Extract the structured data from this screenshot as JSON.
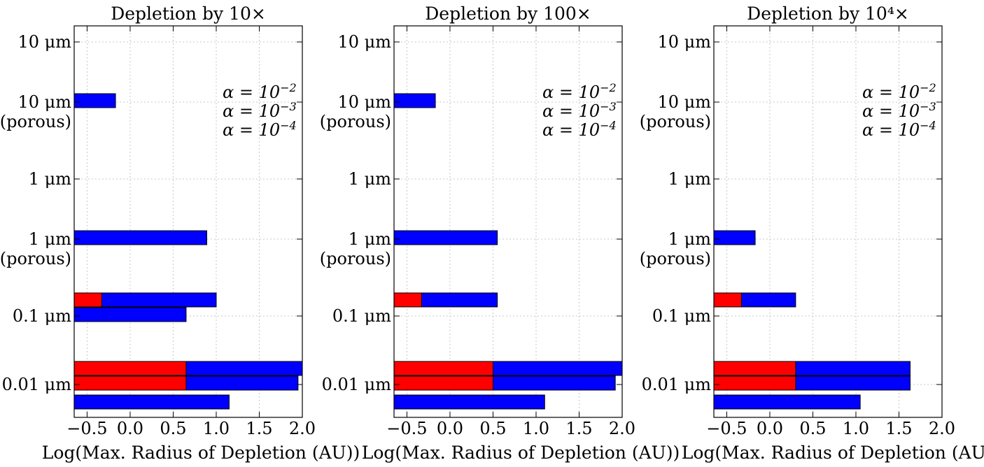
{
  "chart_data": [
    {
      "type": "bar",
      "orientation": "horizontal",
      "title": "Depletion by 10×",
      "xlabel": "Log(Max. Radius of Depletion (AU))",
      "xlim": [
        -0.65,
        2.0
      ],
      "xticks": [
        "−0.5",
        "0.0",
        "0.5",
        "1.0",
        "1.5",
        "2.0"
      ],
      "categories": [
        "10 μm",
        "10 μm (porous)",
        "1 μm",
        "1 μm (porous)",
        "0.1 μm",
        "0.01 μm"
      ],
      "grid": true,
      "legend_placement": "top-right",
      "legend": [
        "α = 10^−2",
        "α = 10^−3",
        "α = 10^−4"
      ],
      "series": [
        {
          "name": "α = 10^−2",
          "color": "#ff0000",
          "values": [
            null,
            null,
            null,
            null,
            -0.33,
            0.65
          ]
        },
        {
          "name": "α = 10^−3",
          "color": "#ff0000",
          "values": [
            null,
            null,
            null,
            null,
            null,
            0.65
          ]
        },
        {
          "name": "α = 10^−4",
          "color": "#0000ff",
          "values": [
            null,
            null,
            null,
            null,
            null,
            null
          ]
        }
      ],
      "bars": [
        {
          "category": 1,
          "slot": 1,
          "layers": [
            {
              "color": "#0000ff",
              "value": -0.17
            }
          ]
        },
        {
          "category": 3,
          "slot": 1,
          "layers": [
            {
              "color": "#0000ff",
              "value": 0.89
            }
          ]
        },
        {
          "category": 4,
          "slot": 0,
          "layers": [
            {
              "color": "#0000ff",
              "value": 1.0
            },
            {
              "color": "#ff0000",
              "value": -0.33
            }
          ]
        },
        {
          "category": 4,
          "slot": 1,
          "layers": [
            {
              "color": "#0000ff",
              "value": 0.65
            }
          ]
        },
        {
          "category": 5,
          "slot": 0,
          "layers": [
            {
              "color": "#0000ff",
              "value": 2.0
            },
            {
              "color": "#ff0000",
              "value": 0.65
            }
          ]
        },
        {
          "category": 5,
          "slot": 1,
          "layers": [
            {
              "color": "#0000ff",
              "value": 1.95
            },
            {
              "color": "#ff0000",
              "value": 0.65
            }
          ]
        },
        {
          "category": 5,
          "slot": 2,
          "layers": [
            {
              "color": "#0000ff",
              "value": 1.15
            }
          ]
        }
      ]
    },
    {
      "type": "bar",
      "orientation": "horizontal",
      "title": "Depletion by 100×",
      "xlabel": "Log(Max. Radius of Depletion (AU))",
      "xlim": [
        -0.65,
        2.0
      ],
      "xticks": [
        "−0.5",
        "0.0",
        "0.5",
        "1.0",
        "1.5",
        "2.0"
      ],
      "categories": [
        "10 μm",
        "10 μm (porous)",
        "1 μm",
        "1 μm (porous)",
        "0.1 μm",
        "0.01 μm"
      ],
      "grid": true,
      "legend_placement": "top-right",
      "legend": [
        "α = 10^−2",
        "α = 10^−3",
        "α = 10^−4"
      ],
      "bars": [
        {
          "category": 1,
          "slot": 1,
          "layers": [
            {
              "color": "#0000ff",
              "value": -0.17
            }
          ]
        },
        {
          "category": 3,
          "slot": 1,
          "layers": [
            {
              "color": "#0000ff",
              "value": 0.55
            }
          ]
        },
        {
          "category": 4,
          "slot": 0,
          "layers": [
            {
              "color": "#0000ff",
              "value": 0.55
            },
            {
              "color": "#ff0000",
              "value": -0.33
            }
          ]
        },
        {
          "category": 5,
          "slot": 0,
          "layers": [
            {
              "color": "#0000ff",
              "value": 2.0
            },
            {
              "color": "#ff0000",
              "value": 0.5
            }
          ]
        },
        {
          "category": 5,
          "slot": 1,
          "layers": [
            {
              "color": "#0000ff",
              "value": 1.92
            },
            {
              "color": "#ff0000",
              "value": 0.5
            }
          ]
        },
        {
          "category": 5,
          "slot": 2,
          "layers": [
            {
              "color": "#0000ff",
              "value": 1.1
            }
          ]
        }
      ]
    },
    {
      "type": "bar",
      "orientation": "horizontal",
      "title": "Depletion by 10⁴×",
      "xlabel": "Log(Max. Radius of Depletion (AU))",
      "xlim": [
        -0.65,
        2.0
      ],
      "xticks": [
        "−0.5",
        "0.0",
        "0.5",
        "1.0",
        "1.5",
        "2.0"
      ],
      "categories": [
        "10 μm",
        "10 μm (porous)",
        "1 μm",
        "1 μm (porous)",
        "0.1 μm",
        "0.01 μm"
      ],
      "grid": true,
      "legend_placement": "top-right",
      "legend": [
        "α = 10^−2",
        "α = 10^−3",
        "α = 10^−4"
      ],
      "bars": [
        {
          "category": 3,
          "slot": 1,
          "layers": [
            {
              "color": "#0000ff",
              "value": -0.17
            }
          ]
        },
        {
          "category": 4,
          "slot": 0,
          "layers": [
            {
              "color": "#0000ff",
              "value": 0.3
            },
            {
              "color": "#ff0000",
              "value": -0.33
            }
          ]
        },
        {
          "category": 5,
          "slot": 0,
          "layers": [
            {
              "color": "#0000ff",
              "value": 1.63
            },
            {
              "color": "#ff0000",
              "value": 0.3
            }
          ]
        },
        {
          "category": 5,
          "slot": 1,
          "layers": [
            {
              "color": "#0000ff",
              "value": 1.63
            },
            {
              "color": "#ff0000",
              "value": 0.3
            }
          ]
        },
        {
          "category": 5,
          "slot": 2,
          "layers": [
            {
              "color": "#0000ff",
              "value": 1.05
            }
          ]
        }
      ]
    }
  ]
}
